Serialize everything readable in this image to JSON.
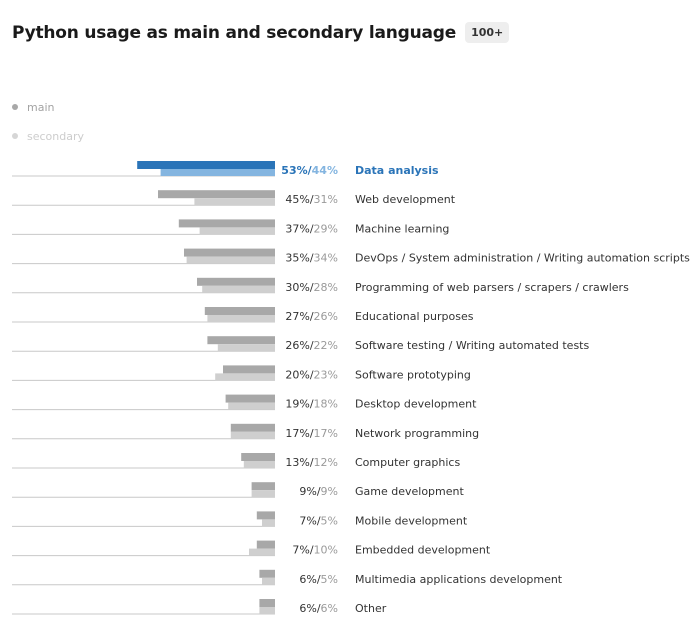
{
  "header": {
    "title": "Python usage as main and secondary language",
    "badge": "100+"
  },
  "legend": {
    "main": "main",
    "secondary": "secondary"
  },
  "colors": {
    "main": "#a8a8a8",
    "secondary": "#cfcfcf",
    "highlight_main": "#2a74b8",
    "highlight_secondary": "#84b5e0",
    "label": "#333333",
    "baseline": "#c8c8c8",
    "highlight_text": "#2a74b8"
  },
  "chart_data": {
    "type": "bar",
    "orientation": "horizontal",
    "unit": "%",
    "xlim": [
      0,
      100
    ],
    "grid": false,
    "legend_position": "top-left",
    "highlighted_category": "Data analysis",
    "categories": [
      "Data analysis",
      "Web development",
      "Machine learning",
      "DevOps / System administration / Writing automation scripts",
      "Programming of web parsers / scrapers / crawlers",
      "Educational purposes",
      "Software testing / Writing automated tests",
      "Software prototyping",
      "Desktop development",
      "Network programming",
      "Computer graphics",
      "Game development",
      "Mobile development",
      "Embedded development",
      "Multimedia applications development",
      "Other"
    ],
    "series": [
      {
        "name": "main",
        "values": [
          53,
          45,
          37,
          35,
          30,
          27,
          26,
          20,
          19,
          17,
          13,
          9,
          7,
          7,
          6,
          6
        ]
      },
      {
        "name": "secondary",
        "values": [
          44,
          31,
          29,
          34,
          28,
          26,
          22,
          23,
          18,
          17,
          12,
          9,
          5,
          10,
          5,
          6
        ]
      }
    ]
  }
}
